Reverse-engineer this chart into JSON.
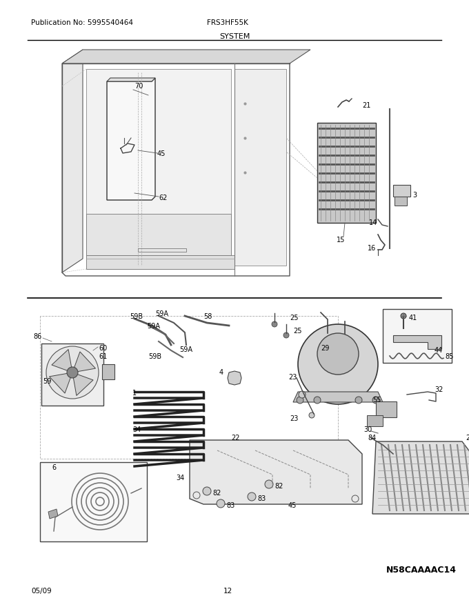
{
  "title": "SYSTEM",
  "pub_no": "Publication No: 5995540464",
  "model": "FRS3HF55K",
  "date": "05/09",
  "page": "12",
  "diagram_id": "N58CAAAAC14",
  "bg_color": "#ffffff",
  "text_color": "#000000",
  "fig_width": 6.8,
  "fig_height": 8.8,
  "dpi": 100
}
